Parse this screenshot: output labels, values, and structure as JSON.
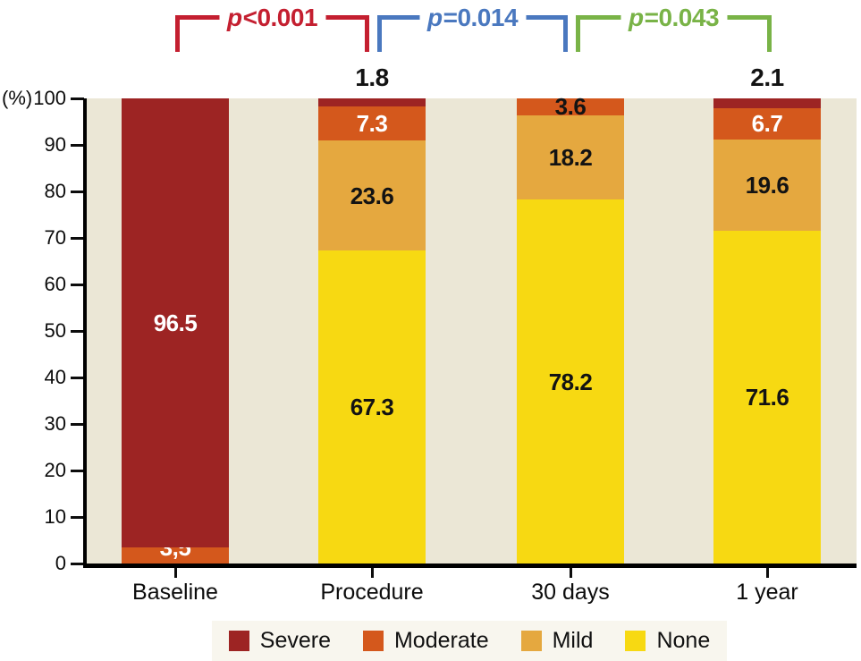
{
  "figure": {
    "background": "#ffffff",
    "text_color": "#111111"
  },
  "chart_data": {
    "type": "stacked-bar",
    "title": "",
    "xlabel": "",
    "ylabel": "(%)",
    "ylim": [
      0,
      100
    ],
    "yticks": [
      0,
      10,
      20,
      30,
      40,
      50,
      60,
      70,
      80,
      90,
      100
    ],
    "grid": false,
    "plot_background": "#ebe7d6",
    "categories": [
      "Baseline",
      "Procedure",
      "30 days",
      "1 year"
    ],
    "series": [
      {
        "name": "Severe",
        "color": "#9d2423",
        "values": [
          96.5,
          1.8,
          0,
          2.1
        ]
      },
      {
        "name": "Moderate",
        "color": "#d4581c",
        "values": [
          3.5,
          7.3,
          3.6,
          6.7
        ]
      },
      {
        "name": "Mild",
        "color": "#e5a83f",
        "values": [
          0,
          23.6,
          18.2,
          19.6
        ]
      },
      {
        "name": "None",
        "color": "#f7d912",
        "values": [
          0,
          67.3,
          78.2,
          71.6
        ]
      }
    ],
    "bars": [
      {
        "category": "Baseline",
        "segments": [
          {
            "series": "Moderate",
            "value": 3.5,
            "label": "3,5",
            "label_color": "#ffffff",
            "label_pos": "inside"
          },
          {
            "series": "Severe",
            "value": 96.5,
            "label": "96.5",
            "label_color": "#ffffff",
            "label_pos": "inside"
          }
        ]
      },
      {
        "category": "Procedure",
        "segments": [
          {
            "series": "None",
            "value": 67.3,
            "label": "67.3",
            "label_color": "#131313",
            "label_pos": "inside"
          },
          {
            "series": "Mild",
            "value": 23.6,
            "label": "23.6",
            "label_color": "#131313",
            "label_pos": "inside"
          },
          {
            "series": "Moderate",
            "value": 7.3,
            "label": "7.3",
            "label_color": "#ffffff",
            "label_pos": "inside"
          },
          {
            "series": "Severe",
            "value": 1.8,
            "label": "1.8",
            "label_color": "#131313",
            "label_pos": "above"
          }
        ]
      },
      {
        "category": "30 days",
        "segments": [
          {
            "series": "None",
            "value": 78.2,
            "label": "78.2",
            "label_color": "#131313",
            "label_pos": "inside"
          },
          {
            "series": "Mild",
            "value": 18.2,
            "label": "18.2",
            "label_color": "#131313",
            "label_pos": "inside"
          },
          {
            "series": "Moderate",
            "value": 3.6,
            "label": "3.6",
            "label_color": "#131313",
            "label_pos": "inside"
          }
        ]
      },
      {
        "category": "1 year",
        "segments": [
          {
            "series": "None",
            "value": 71.6,
            "label": "71.6",
            "label_color": "#131313",
            "label_pos": "inside"
          },
          {
            "series": "Mild",
            "value": 19.6,
            "label": "19.6",
            "label_color": "#131313",
            "label_pos": "inside"
          },
          {
            "series": "Moderate",
            "value": 6.7,
            "label": "6.7",
            "label_color": "#ffffff",
            "label_pos": "inside"
          },
          {
            "series": "Severe",
            "value": 2.1,
            "label": "2.1",
            "label_color": "#131313",
            "label_pos": "above"
          }
        ]
      }
    ],
    "annotations": [
      {
        "label": "p<0.001",
        "color": "#c41f30",
        "from": "Baseline",
        "to": "Procedure"
      },
      {
        "label": "p=0.014",
        "color": "#4a78bf",
        "from": "Procedure",
        "to": "30 days"
      },
      {
        "label": "p=0.043",
        "color": "#79b347",
        "from": "30 days",
        "to": "1 year"
      }
    ],
    "legend": {
      "position": "bottom",
      "background": "#f8f6ee",
      "items": [
        "Severe",
        "Moderate",
        "Mild",
        "None"
      ]
    }
  }
}
